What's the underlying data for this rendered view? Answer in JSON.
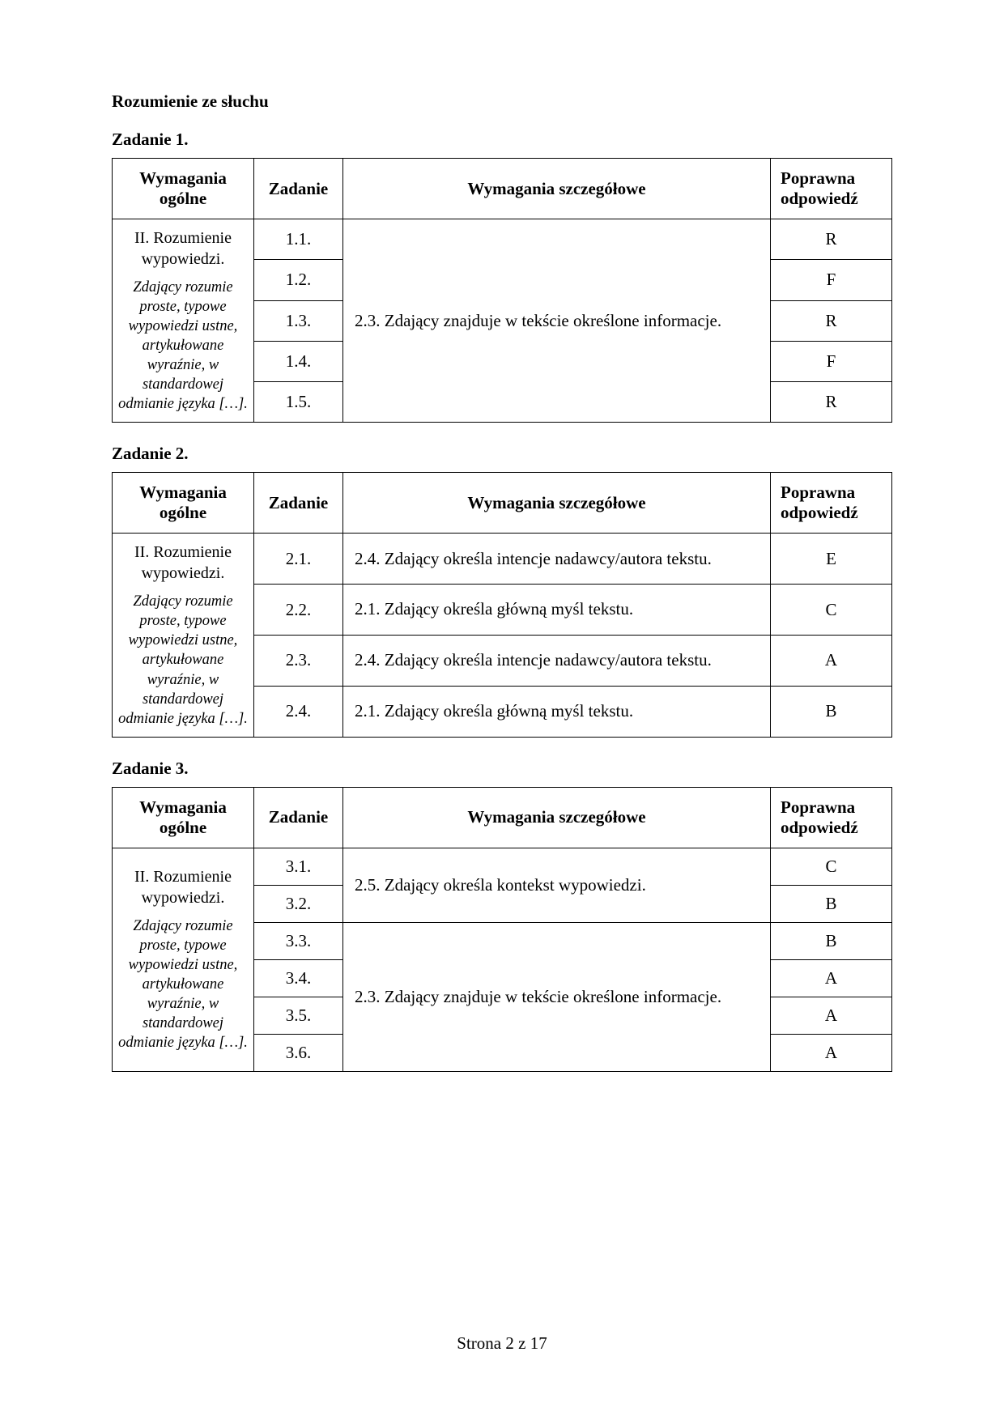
{
  "section_title": "Rozumienie ze słuchu",
  "footer": "Strona 2 z 17",
  "columns": {
    "req": "Wymagania ogólne",
    "task": "Zadanie",
    "detail": "Wymagania szczegółowe",
    "answer": "Poprawna odpowiedź"
  },
  "requirement_text": {
    "main": "II. Rozumienie wypowiedzi.",
    "italic": "Zdający rozumie proste, typowe wypowiedzi ustne, artykułowane wyraźnie, w standardowej odmianie języka […]."
  },
  "tasks": [
    {
      "title": "Zadanie 1.",
      "detail_groups": [
        {
          "text": "2.3. Zdający znajduje w tekście określone informacje.",
          "span": 5
        }
      ],
      "rows": [
        {
          "num": "1.1.",
          "ans": "R"
        },
        {
          "num": "1.2.",
          "ans": "F"
        },
        {
          "num": "1.3.",
          "ans": "R"
        },
        {
          "num": "1.4.",
          "ans": "F"
        },
        {
          "num": "1.5.",
          "ans": "R"
        }
      ]
    },
    {
      "title": "Zadanie 2.",
      "detail_groups": [
        {
          "text": "2.4. Zdający określa intencje nadawcy/autora tekstu.",
          "span": 1
        },
        {
          "text": "2.1. Zdający określa główną myśl tekstu.",
          "span": 1
        },
        {
          "text": "2.4. Zdający określa intencje nadawcy/autora tekstu.",
          "span": 1
        },
        {
          "text": "2.1. Zdający określa główną myśl tekstu.",
          "span": 1
        }
      ],
      "rows": [
        {
          "num": "2.1.",
          "ans": "E"
        },
        {
          "num": "2.2.",
          "ans": "C"
        },
        {
          "num": "2.3.",
          "ans": "A"
        },
        {
          "num": "2.4.",
          "ans": "B"
        }
      ]
    },
    {
      "title": "Zadanie 3.",
      "detail_groups": [
        {
          "text": "2.5. Zdający określa kontekst wypowiedzi.",
          "span": 2
        },
        {
          "text": "2.3. Zdający znajduje w tekście określone informacje.",
          "span": 4
        }
      ],
      "rows": [
        {
          "num": "3.1.",
          "ans": "C"
        },
        {
          "num": "3.2.",
          "ans": "B"
        },
        {
          "num": "3.3.",
          "ans": "B"
        },
        {
          "num": "3.4.",
          "ans": "A"
        },
        {
          "num": "3.5.",
          "ans": "A"
        },
        {
          "num": "3.6.",
          "ans": "A"
        }
      ]
    }
  ]
}
